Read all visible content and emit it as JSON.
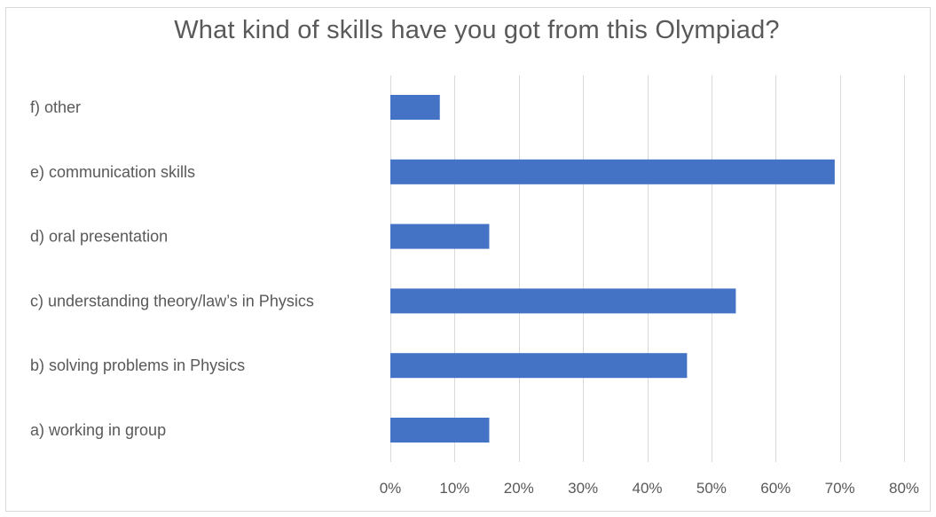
{
  "chart_data": {
    "type": "bar",
    "orientation": "horizontal",
    "title": "What kind of skills have you got from this Olympiad?",
    "categories": [
      "f) other",
      "e) communication skills",
      "d) oral presentation",
      "c) understanding theory/law’s in Physics",
      "b) solving problems in Physics",
      "a) working in group"
    ],
    "values": [
      0.077,
      0.692,
      0.154,
      0.538,
      0.462,
      0.154
    ],
    "xlim": [
      0,
      0.8
    ],
    "x_ticks": [
      0,
      0.1,
      0.2,
      0.3,
      0.4,
      0.5,
      0.6,
      0.7,
      0.8
    ],
    "x_tick_labels": [
      "0%",
      "10%",
      "20%",
      "30%",
      "40%",
      "50%",
      "60%",
      "70%",
      "80%"
    ],
    "bar_color": "#4472c4",
    "grid": true,
    "legend": false
  }
}
